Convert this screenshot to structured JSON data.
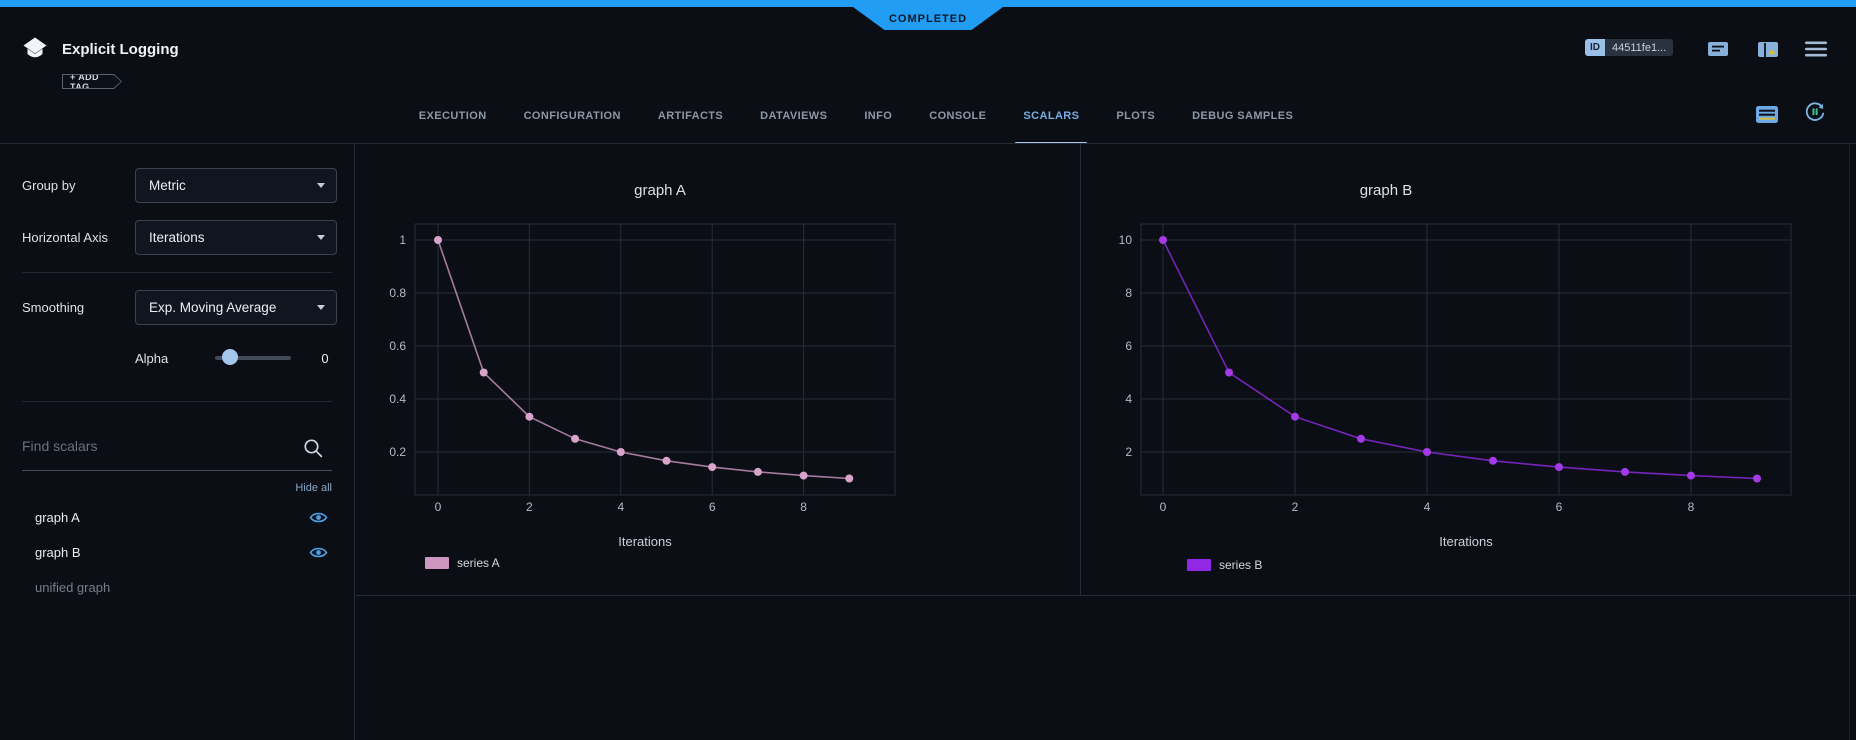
{
  "status_banner": {
    "label": "COMPLETED",
    "color": "#219df4"
  },
  "header": {
    "title": "Explicit Logging",
    "add_tag_label": "+ ADD TAG",
    "id_label": "ID",
    "id_value": "44511fe1...",
    "icons": [
      "comment-icon",
      "panel-icon",
      "menu-icon"
    ]
  },
  "tabs": {
    "items": [
      {
        "label": "EXECUTION",
        "active": false
      },
      {
        "label": "CONFIGURATION",
        "active": false
      },
      {
        "label": "ARTIFACTS",
        "active": false
      },
      {
        "label": "DATAVIEWS",
        "active": false
      },
      {
        "label": "INFO",
        "active": false
      },
      {
        "label": "CONSOLE",
        "active": false
      },
      {
        "label": "SCALARS",
        "active": true
      },
      {
        "label": "PLOTS",
        "active": false
      },
      {
        "label": "DEBUG SAMPLES",
        "active": false
      }
    ],
    "right_icons": [
      "metrics-table-icon",
      "auto-refresh-icon"
    ],
    "active_color": "#79aee3"
  },
  "sidebar": {
    "group_by": {
      "label": "Group by",
      "value": "Metric"
    },
    "horizontal_axis": {
      "label": "Horizontal Axis",
      "value": "Iterations"
    },
    "smoothing": {
      "label": "Smoothing",
      "value": "Exp. Moving Average"
    },
    "alpha": {
      "label": "Alpha",
      "value": "0"
    },
    "search": {
      "placeholder": "Find scalars"
    },
    "hide_all_label": "Hide all",
    "metrics": [
      {
        "label": "graph A",
        "visible": true
      },
      {
        "label": "graph B",
        "visible": true
      },
      {
        "label": "unified graph",
        "visible": false
      }
    ]
  },
  "chart_data": [
    {
      "type": "line",
      "title": "graph A",
      "xlabel": "Iterations",
      "grid": true,
      "legend_position": "bottom-left",
      "xticks": [
        0,
        2,
        4,
        6,
        8
      ],
      "yticks": [
        1,
        0.8,
        0.6,
        0.4,
        0.2
      ],
      "xlim": [
        -0.5,
        10
      ],
      "ylim": [
        0.04,
        1.06
      ],
      "series": [
        {
          "name": "series A",
          "color": "#cc96bf",
          "point_color": "#d8a4cc",
          "x": [
            0,
            1,
            2,
            3,
            4,
            5,
            6,
            7,
            8,
            9
          ],
          "y": [
            1,
            0.5,
            0.3333,
            0.25,
            0.2,
            0.1667,
            0.1429,
            0.125,
            0.1111,
            0.1
          ]
        }
      ]
    },
    {
      "type": "line",
      "title": "graph B",
      "xlabel": "Iterations",
      "grid": true,
      "legend_position": "bottom-left",
      "xticks": [
        0,
        2,
        4,
        6,
        8
      ],
      "yticks": [
        10,
        8,
        6,
        4,
        2
      ],
      "xlim": [
        -0.5,
        10
      ],
      "ylim": [
        0.4,
        10.6
      ],
      "series": [
        {
          "name": "series B",
          "color": "#9129e4",
          "point_color": "#a53ae8",
          "x": [
            0,
            1,
            2,
            3,
            4,
            5,
            6,
            7,
            8,
            9
          ],
          "y": [
            10,
            5,
            3.3333,
            2.5,
            2,
            1.6667,
            1.4286,
            1.25,
            1.1111,
            1
          ]
        }
      ]
    }
  ]
}
